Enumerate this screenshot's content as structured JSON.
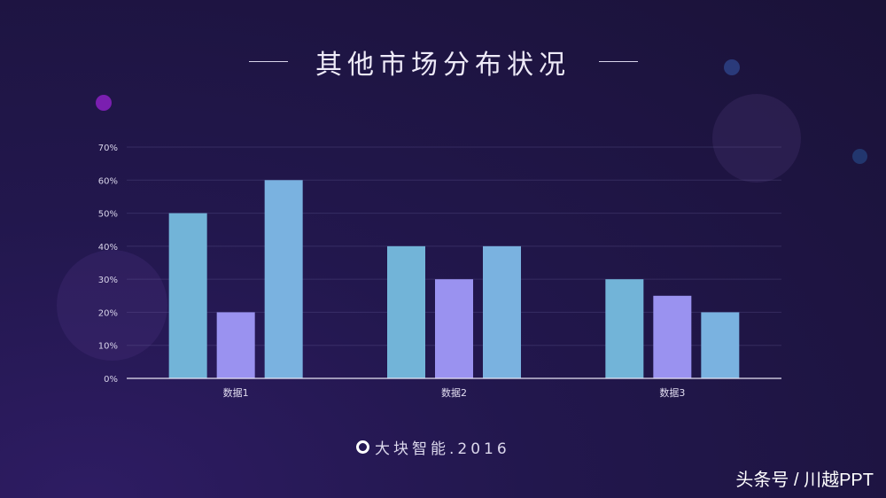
{
  "title": "其他市场分布状况",
  "footer": {
    "brand": "大块智能.2016",
    "logo_icon": "drop-ring-icon"
  },
  "watermark": "头条号 / 川越PPT",
  "chart_data": {
    "type": "bar",
    "categories": [
      "数据1",
      "数据2",
      "数据3"
    ],
    "series": [
      {
        "values": [
          50,
          40,
          30
        ],
        "color": "#72b4d8"
      },
      {
        "values": [
          20,
          30,
          25
        ],
        "color": "#9a92f0"
      },
      {
        "values": [
          60,
          40,
          20
        ],
        "color": "#7ab2e0"
      }
    ],
    "ylim": [
      0,
      70
    ],
    "yticks": [
      "0%",
      "10%",
      "20%",
      "30%",
      "40%",
      "50%",
      "60%",
      "70%"
    ],
    "grid": true,
    "xlabel": "",
    "ylabel": ""
  }
}
